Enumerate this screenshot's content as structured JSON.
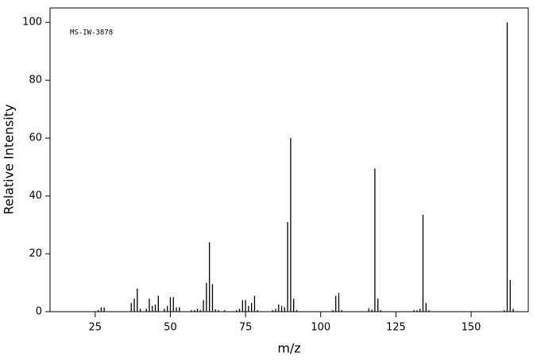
{
  "chart_data": {
    "type": "stem",
    "annotation": "MS-IW-3878",
    "xlabel": "m/z",
    "ylabel": "Relative Intensity",
    "x": [
      26,
      27,
      28,
      37,
      38,
      39,
      40,
      42,
      43,
      44,
      45,
      46,
      48,
      49,
      50,
      51,
      52,
      53,
      57,
      58,
      59,
      60,
      61,
      62,
      63,
      64,
      65,
      66,
      68,
      72,
      73,
      74,
      75,
      76,
      77,
      78,
      79,
      84,
      85,
      86,
      87,
      88,
      89,
      90,
      91,
      92,
      104,
      105,
      106,
      107,
      116,
      117,
      118,
      119,
      120,
      131,
      132,
      133,
      134,
      135,
      136,
      161,
      162,
      163,
      164
    ],
    "values": [
      0.5,
      1.5,
      1.5,
      3,
      4.5,
      8,
      1,
      1,
      4.5,
      2,
      2.5,
      5.5,
      1,
      2,
      5,
      5,
      1.5,
      1.5,
      0.5,
      0.5,
      1,
      0.5,
      4,
      10,
      24,
      9.5,
      0.8,
      0.5,
      0.5,
      0.5,
      1,
      4,
      4,
      2,
      3,
      5.5,
      0.5,
      0.5,
      1,
      2.5,
      2,
      1.5,
      31,
      60,
      4.5,
      0.5,
      0.5,
      5.5,
      6.5,
      0.5,
      1.2,
      0.7,
      49.5,
      4.5,
      0.5,
      0.5,
      0.5,
      1,
      33.5,
      3,
      0.5,
      0.5,
      100,
      11,
      1
    ],
    "color": "#000000",
    "xlim": [
      10,
      169
    ],
    "ylim": [
      0,
      105
    ],
    "xticks": [
      25,
      50,
      75,
      100,
      125,
      150
    ],
    "yticks": [
      0,
      20,
      40,
      60,
      80,
      100
    ]
  }
}
